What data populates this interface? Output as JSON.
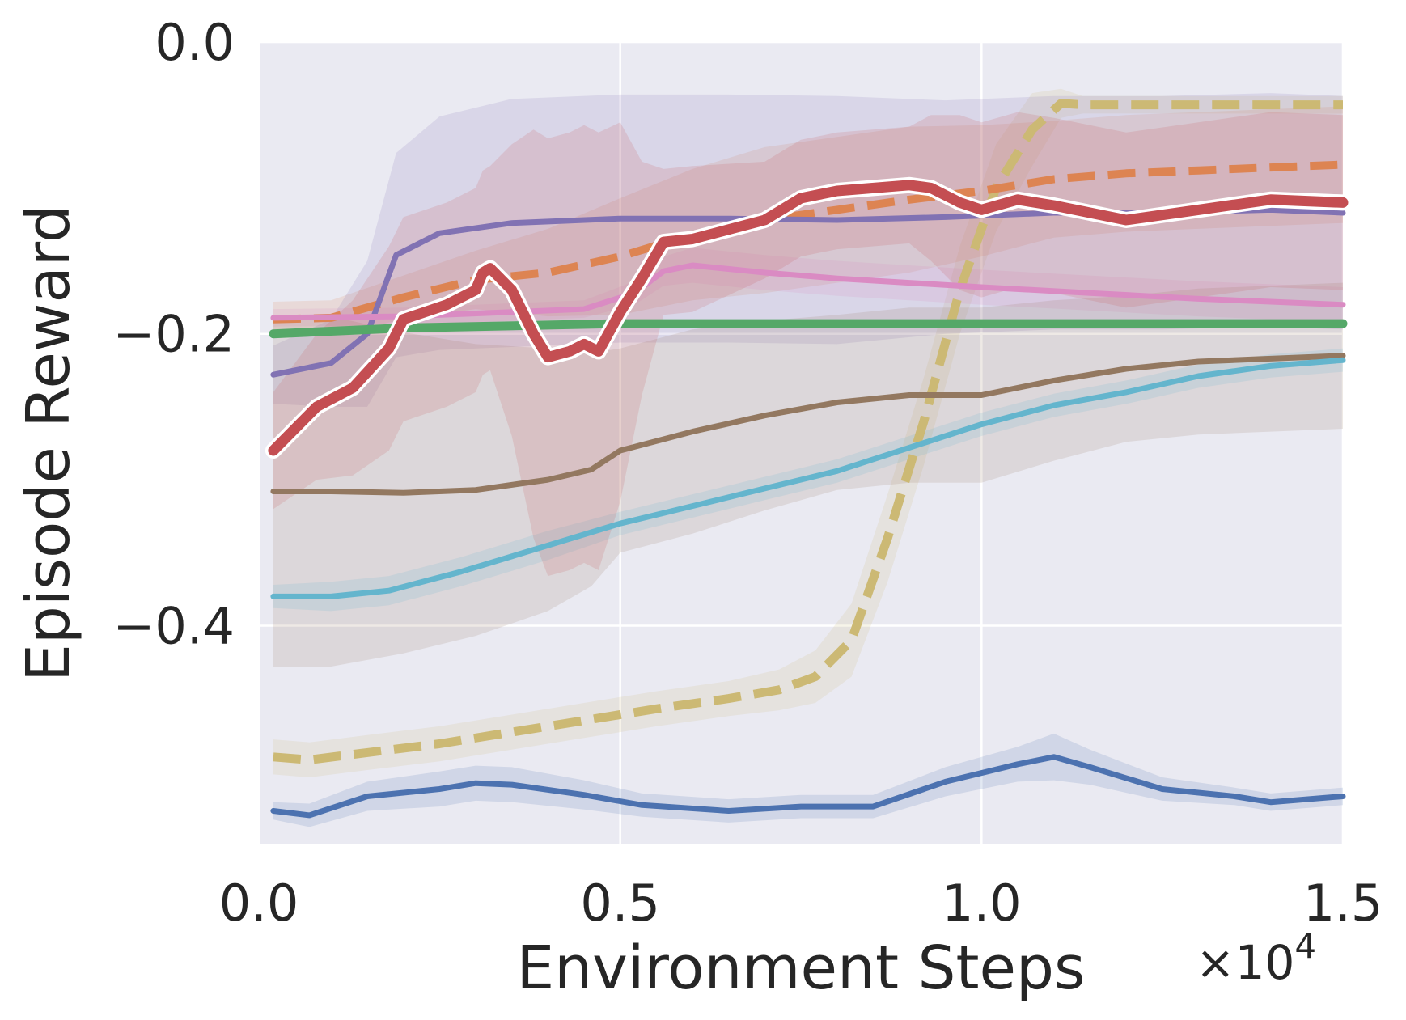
{
  "chart_data": {
    "type": "line",
    "title": "",
    "xlabel": "Environment Steps",
    "ylabel": "Episode Reward",
    "x_multiplier": "×10",
    "x_multiplier_exp": "4",
    "xlim": [
      0,
      15000
    ],
    "ylim": [
      -0.55,
      0.0
    ],
    "x_ticks": [
      {
        "value": 0,
        "label": "0.0"
      },
      {
        "value": 5000,
        "label": "0.5"
      },
      {
        "value": 10000,
        "label": "1.0"
      },
      {
        "value": 15000,
        "label": "1.5"
      }
    ],
    "y_ticks": [
      {
        "value": 0.0,
        "label": "0.0"
      },
      {
        "value": -0.2,
        "label": "−0.2"
      },
      {
        "value": -0.4,
        "label": "−0.4"
      }
    ],
    "grid": true,
    "legend": "none",
    "background": "#eaeaf2",
    "series": [
      {
        "color": "#ccb974",
        "dash": true,
        "width": 11,
        "band_color": "#ccb974",
        "points": [
          [
            200,
            -0.49
          ],
          [
            700,
            -0.492
          ],
          [
            1500,
            -0.487
          ],
          [
            2500,
            -0.481
          ],
          [
            3500,
            -0.473
          ],
          [
            4500,
            -0.465
          ],
          [
            5500,
            -0.457
          ],
          [
            6500,
            -0.45
          ],
          [
            7200,
            -0.444
          ],
          [
            7700,
            -0.435
          ],
          [
            8200,
            -0.41
          ],
          [
            8700,
            -0.34
          ],
          [
            9200,
            -0.26
          ],
          [
            9700,
            -0.17
          ],
          [
            10200,
            -0.1
          ],
          [
            10700,
            -0.06
          ],
          [
            11100,
            -0.042
          ],
          [
            11400,
            -0.043
          ],
          [
            13000,
            -0.043
          ],
          [
            15000,
            -0.043
          ]
        ],
        "band": [
          0.012,
          0.012,
          0.012,
          0.012,
          0.012,
          0.012,
          0.012,
          0.012,
          0.014,
          0.018,
          0.025,
          0.03,
          0.03,
          0.03,
          0.03,
          0.025,
          0.01,
          0.006,
          0.006,
          0.006
        ]
      },
      {
        "color": "#dd8452",
        "dash": true,
        "width": 10,
        "band_color": "#dd8452",
        "points": [
          [
            200,
            -0.19
          ],
          [
            1000,
            -0.189
          ],
          [
            2000,
            -0.175
          ],
          [
            3000,
            -0.163
          ],
          [
            4000,
            -0.158
          ],
          [
            5000,
            -0.147
          ],
          [
            6000,
            -0.132
          ],
          [
            7000,
            -0.122
          ],
          [
            8000,
            -0.115
          ],
          [
            9000,
            -0.108
          ],
          [
            10000,
            -0.102
          ],
          [
            11000,
            -0.094
          ],
          [
            12000,
            -0.09
          ],
          [
            13000,
            -0.088
          ],
          [
            14000,
            -0.086
          ],
          [
            15000,
            -0.084
          ]
        ],
        "band": [
          0.012,
          0.012,
          0.015,
          0.02,
          0.03,
          0.04,
          0.045,
          0.05,
          0.05,
          0.05,
          0.045,
          0.04,
          0.04,
          0.04,
          0.04,
          0.04
        ]
      },
      {
        "color": "#8172b3",
        "dash": false,
        "width": 7,
        "band_color": "#8172b3",
        "points": [
          [
            200,
            -0.228
          ],
          [
            1000,
            -0.22
          ],
          [
            1500,
            -0.2
          ],
          [
            1900,
            -0.146
          ],
          [
            2500,
            -0.131
          ],
          [
            3500,
            -0.124
          ],
          [
            5000,
            -0.121
          ],
          [
            6500,
            -0.121
          ],
          [
            8000,
            -0.122
          ],
          [
            9500,
            -0.12
          ],
          [
            11000,
            -0.117
          ],
          [
            12500,
            -0.117
          ],
          [
            14000,
            -0.115
          ],
          [
            15000,
            -0.117
          ]
        ],
        "band": [
          0.02,
          0.03,
          0.05,
          0.07,
          0.08,
          0.085,
          0.085,
          0.085,
          0.085,
          0.08,
          0.08,
          0.08,
          0.08,
          0.08
        ]
      },
      {
        "color": "#da8bc3",
        "dash": false,
        "width": 7,
        "band_color": "#da8bc3",
        "points": [
          [
            200,
            -0.189
          ],
          [
            2000,
            -0.188
          ],
          [
            4500,
            -0.183
          ],
          [
            5200,
            -0.172
          ],
          [
            5600,
            -0.157
          ],
          [
            6000,
            -0.153
          ],
          [
            7000,
            -0.158
          ],
          [
            8000,
            -0.162
          ],
          [
            9000,
            -0.165
          ],
          [
            10000,
            -0.168
          ],
          [
            11500,
            -0.172
          ],
          [
            13000,
            -0.176
          ],
          [
            14000,
            -0.178
          ],
          [
            15000,
            -0.18
          ]
        ],
        "band": [
          0.006,
          0.006,
          0.006,
          0.008,
          0.01,
          0.012,
          0.012,
          0.012,
          0.012,
          0.012,
          0.012,
          0.012,
          0.012,
          0.012
        ]
      },
      {
        "color": "#55a868",
        "dash": false,
        "width": 11,
        "band_color": "#55a868",
        "points": [
          [
            200,
            -0.2
          ],
          [
            2000,
            -0.196
          ],
          [
            5000,
            -0.193
          ],
          [
            10000,
            -0.193
          ],
          [
            15000,
            -0.193
          ]
        ],
        "band": [
          0.002,
          0.002,
          0.002,
          0.002,
          0.002
        ]
      },
      {
        "color": "#937860",
        "dash": false,
        "width": 7,
        "band_color": "#937860",
        "points": [
          [
            200,
            -0.308
          ],
          [
            1000,
            -0.308
          ],
          [
            2000,
            -0.309
          ],
          [
            3000,
            -0.307
          ],
          [
            4000,
            -0.3
          ],
          [
            4600,
            -0.293
          ],
          [
            5000,
            -0.28
          ],
          [
            6000,
            -0.267
          ],
          [
            7000,
            -0.256
          ],
          [
            8000,
            -0.247
          ],
          [
            9000,
            -0.242
          ],
          [
            10000,
            -0.242
          ],
          [
            11000,
            -0.232
          ],
          [
            12000,
            -0.224
          ],
          [
            13000,
            -0.219
          ],
          [
            14000,
            -0.217
          ],
          [
            15000,
            -0.215
          ]
        ],
        "band": [
          0.12,
          0.12,
          0.11,
          0.1,
          0.09,
          0.08,
          0.07,
          0.07,
          0.065,
          0.06,
          0.06,
          0.06,
          0.055,
          0.05,
          0.05,
          0.05,
          0.05
        ]
      },
      {
        "color": "#64b5cd",
        "dash": false,
        "width": 7,
        "band_color": "#64b5cd",
        "points": [
          [
            200,
            -0.38
          ],
          [
            1000,
            -0.38
          ],
          [
            1800,
            -0.376
          ],
          [
            2800,
            -0.363
          ],
          [
            4000,
            -0.345
          ],
          [
            5000,
            -0.33
          ],
          [
            6000,
            -0.318
          ],
          [
            7000,
            -0.306
          ],
          [
            8000,
            -0.294
          ],
          [
            9000,
            -0.278
          ],
          [
            10000,
            -0.262
          ],
          [
            11000,
            -0.249
          ],
          [
            12000,
            -0.24
          ],
          [
            13000,
            -0.229
          ],
          [
            14000,
            -0.222
          ],
          [
            15000,
            -0.218
          ]
        ],
        "band": [
          0.008,
          0.01,
          0.01,
          0.01,
          0.01,
          0.008,
          0.008,
          0.008,
          0.008,
          0.008,
          0.008,
          0.008,
          0.008,
          0.008,
          0.008,
          0.008
        ]
      },
      {
        "color": "#4c72b0",
        "dash": false,
        "width": 7,
        "band_color": "#4c72b0",
        "points": [
          [
            200,
            -0.527
          ],
          [
            700,
            -0.53
          ],
          [
            1500,
            -0.517
          ],
          [
            2500,
            -0.512
          ],
          [
            3000,
            -0.508
          ],
          [
            3500,
            -0.509
          ],
          [
            4500,
            -0.516
          ],
          [
            5300,
            -0.523
          ],
          [
            6500,
            -0.527
          ],
          [
            7500,
            -0.524
          ],
          [
            8500,
            -0.524
          ],
          [
            9500,
            -0.507
          ],
          [
            10500,
            -0.495
          ],
          [
            11000,
            -0.49
          ],
          [
            11500,
            -0.497
          ],
          [
            12500,
            -0.512
          ],
          [
            13500,
            -0.517
          ],
          [
            14000,
            -0.521
          ],
          [
            15000,
            -0.517
          ]
        ],
        "band": [
          0.006,
          0.008,
          0.01,
          0.012,
          0.012,
          0.012,
          0.01,
          0.008,
          0.008,
          0.008,
          0.008,
          0.01,
          0.012,
          0.016,
          0.012,
          0.008,
          0.006,
          0.006,
          0.006
        ]
      },
      {
        "color": "#c44e52",
        "dash": false,
        "width": 13,
        "outline": "#ffffff",
        "band_color": "#c44e52",
        "points": [
          [
            200,
            -0.28
          ],
          [
            800,
            -0.25
          ],
          [
            1300,
            -0.237
          ],
          [
            1800,
            -0.21
          ],
          [
            2000,
            -0.19
          ],
          [
            2600,
            -0.18
          ],
          [
            3000,
            -0.17
          ],
          [
            3100,
            -0.158
          ],
          [
            3200,
            -0.155
          ],
          [
            3500,
            -0.17
          ],
          [
            3800,
            -0.2
          ],
          [
            4000,
            -0.216
          ],
          [
            4300,
            -0.212
          ],
          [
            4500,
            -0.207
          ],
          [
            4700,
            -0.212
          ],
          [
            5000,
            -0.185
          ],
          [
            5300,
            -0.162
          ],
          [
            5600,
            -0.137
          ],
          [
            6000,
            -0.135
          ],
          [
            7000,
            -0.122
          ],
          [
            7500,
            -0.107
          ],
          [
            8000,
            -0.102
          ],
          [
            9000,
            -0.098
          ],
          [
            9300,
            -0.1
          ],
          [
            9700,
            -0.11
          ],
          [
            10000,
            -0.115
          ],
          [
            10500,
            -0.108
          ],
          [
            11000,
            -0.112
          ],
          [
            12000,
            -0.122
          ],
          [
            13000,
            -0.115
          ],
          [
            14000,
            -0.108
          ],
          [
            15000,
            -0.11
          ]
        ],
        "band": [
          0.04,
          0.05,
          0.06,
          0.07,
          0.07,
          0.07,
          0.07,
          0.07,
          0.07,
          0.1,
          0.14,
          0.15,
          0.15,
          0.15,
          0.15,
          0.13,
          0.08,
          0.05,
          0.05,
          0.04,
          0.04,
          0.04,
          0.04,
          0.05,
          0.06,
          0.06,
          0.06,
          0.06,
          0.06,
          0.06,
          0.06,
          0.06
        ]
      }
    ]
  }
}
